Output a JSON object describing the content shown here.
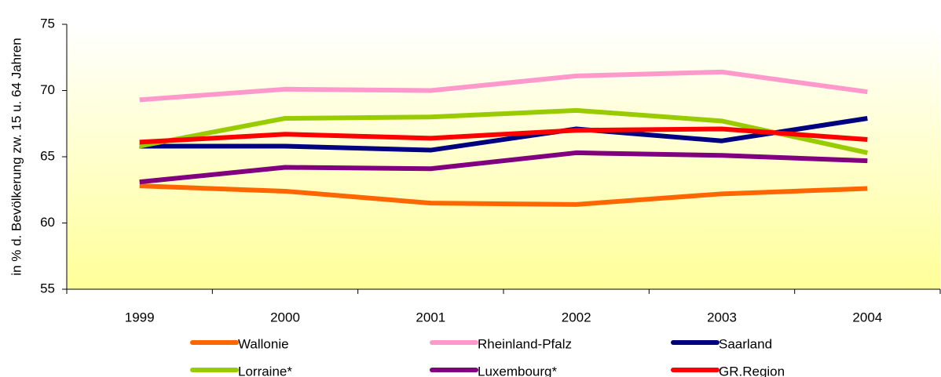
{
  "chart_data": {
    "type": "line",
    "y_label": "in % d. Bevölkerung zw. 15 u. 64 Jahren",
    "categories": [
      "1999",
      "2000",
      "2001",
      "2002",
      "2003",
      "2004"
    ],
    "series": [
      {
        "name": "Wallonie",
        "color": "#ff6600",
        "values": [
          62.8,
          62.4,
          61.5,
          61.4,
          62.2,
          62.6
        ]
      },
      {
        "name": "Rheinland-Pfalz",
        "color": "#ff99cc",
        "values": [
          69.3,
          70.1,
          70.0,
          71.1,
          71.4,
          69.9
        ]
      },
      {
        "name": "Saarland",
        "color": "#000080",
        "values": [
          65.8,
          65.8,
          65.5,
          67.1,
          66.2,
          67.9
        ]
      },
      {
        "name": "Lorraine*",
        "color": "#99cc00",
        "values": [
          65.8,
          67.9,
          68.0,
          68.5,
          67.7,
          65.3
        ]
      },
      {
        "name": "Luxembourg*",
        "color": "#800080",
        "values": [
          63.1,
          64.2,
          64.1,
          65.3,
          65.1,
          64.7
        ]
      },
      {
        "name": "GR.Region",
        "color": "#ff0000",
        "values": [
          66.1,
          66.7,
          66.4,
          67.0,
          67.1,
          66.3
        ]
      }
    ],
    "ylim": [
      55,
      75
    ],
    "yticks": [
      55,
      60,
      65,
      70,
      75
    ],
    "grid": false
  }
}
